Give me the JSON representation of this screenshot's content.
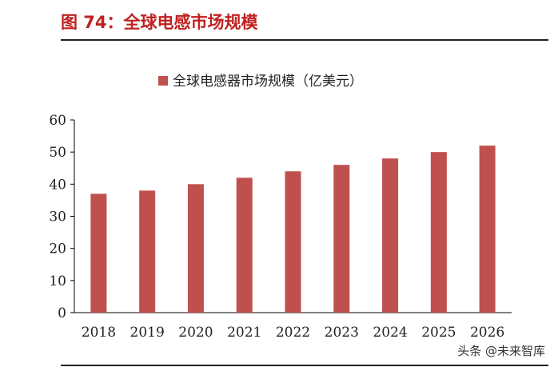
{
  "figure": {
    "title": "图 74：全球电感市场规模",
    "watermark": "头条 @未来智库"
  },
  "colors": {
    "title": "#c0201f",
    "bar": "#c0504d",
    "axis": "#000000",
    "text": "#222222"
  },
  "chart_data": {
    "type": "bar",
    "title": "",
    "xlabel": "",
    "ylabel": "",
    "categories": [
      "2018",
      "2019",
      "2020",
      "2021",
      "2022",
      "2023",
      "2024",
      "2025",
      "2026"
    ],
    "series": [
      {
        "name": "全球电感器市场规模（亿美元）",
        "values": [
          37,
          38,
          40,
          42,
          44,
          46,
          48,
          50,
          52
        ]
      }
    ],
    "ylim": [
      0,
      60
    ],
    "yticks": [
      0,
      10,
      20,
      30,
      40,
      50,
      60
    ],
    "grid": false,
    "legend_position": "top-center"
  }
}
